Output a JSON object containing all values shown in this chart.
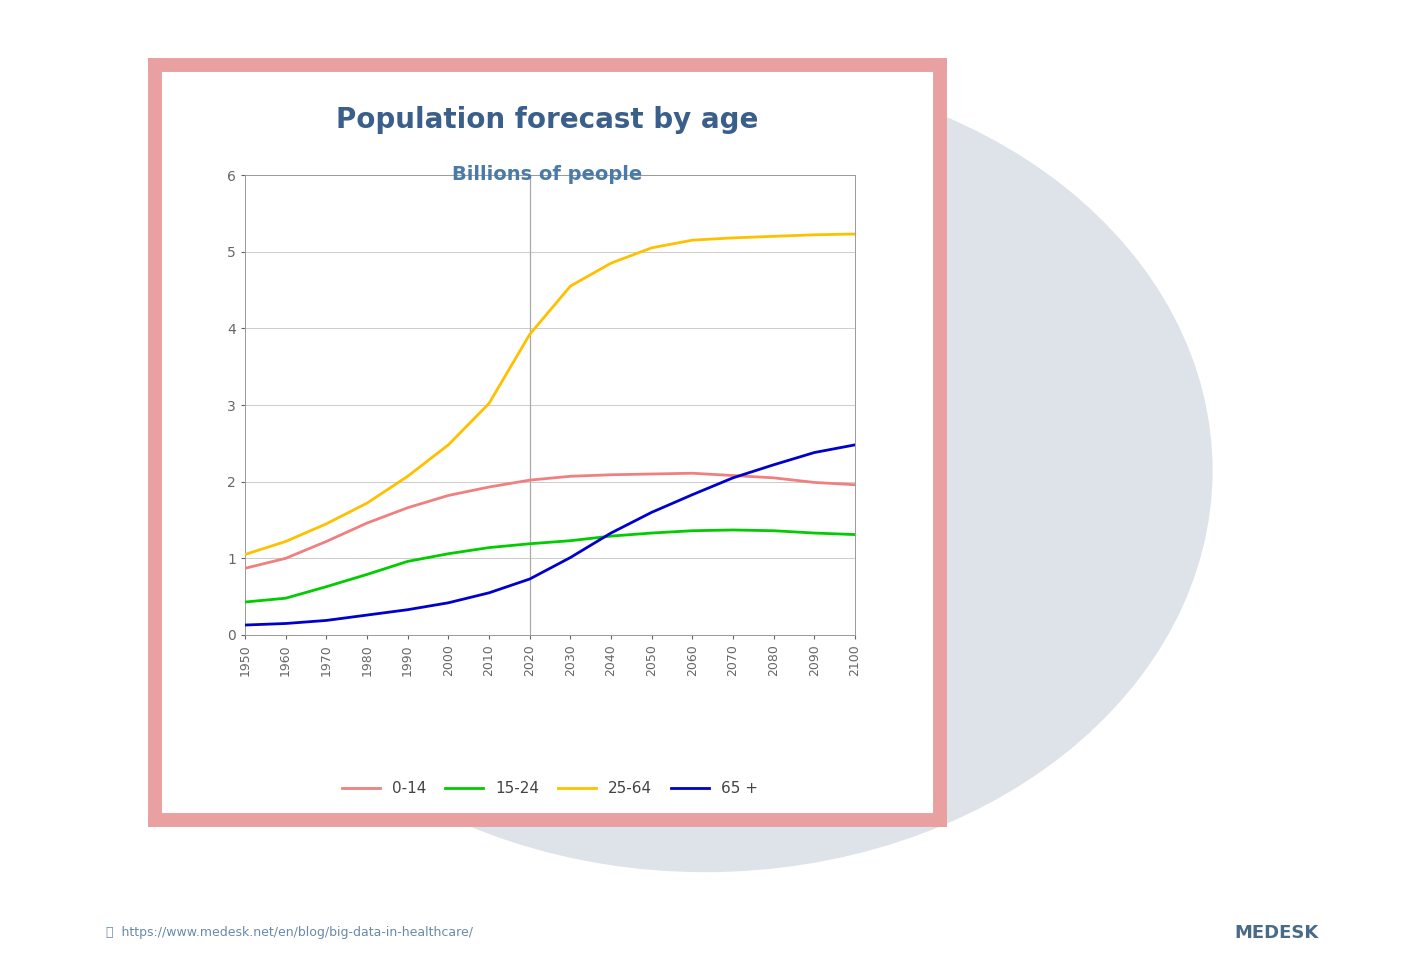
{
  "title": "Population forecast by age",
  "subtitle": "Billions of people",
  "title_color": "#3a5f8a",
  "subtitle_color": "#4a7aaa",
  "title_fontsize": 20,
  "subtitle_fontsize": 14,
  "years": [
    1950,
    1960,
    1970,
    1980,
    1990,
    2000,
    2010,
    2020,
    2030,
    2040,
    2050,
    2060,
    2070,
    2080,
    2090,
    2100
  ],
  "series": {
    "0-14": {
      "color": "#f08080",
      "values": [
        0.87,
        1.0,
        1.22,
        1.46,
        1.66,
        1.82,
        1.93,
        2.02,
        2.07,
        2.09,
        2.1,
        2.11,
        2.08,
        2.05,
        1.99,
        1.96
      ]
    },
    "15-24": {
      "color": "#00cc00",
      "values": [
        0.43,
        0.48,
        0.63,
        0.79,
        0.96,
        1.06,
        1.14,
        1.19,
        1.23,
        1.29,
        1.33,
        1.36,
        1.37,
        1.36,
        1.33,
        1.31
      ]
    },
    "25-64": {
      "color": "#ffc000",
      "values": [
        1.05,
        1.22,
        1.45,
        1.72,
        2.07,
        2.48,
        3.02,
        3.92,
        4.55,
        4.85,
        5.05,
        5.15,
        5.18,
        5.2,
        5.22,
        5.23
      ]
    },
    "65 +": {
      "color": "#0000cc",
      "values": [
        0.13,
        0.15,
        0.19,
        0.26,
        0.33,
        0.42,
        0.55,
        0.73,
        1.01,
        1.33,
        1.6,
        1.83,
        2.05,
        2.22,
        2.38,
        2.48
      ]
    }
  },
  "xlim": [
    1950,
    2100
  ],
  "ylim": [
    0,
    6
  ],
  "yticks": [
    0,
    1,
    2,
    3,
    4,
    5,
    6
  ],
  "xticks": [
    1950,
    1960,
    1970,
    1980,
    1990,
    2000,
    2010,
    2020,
    2030,
    2040,
    2050,
    2060,
    2070,
    2080,
    2090,
    2100
  ],
  "vline_x": 2020,
  "vline_color": "#aaaaaa",
  "grid_color": "#cccccc",
  "plot_bg": "#ffffff",
  "fig_bg": "#ffffff",
  "frame_color": "#e8a0a0",
  "frame_linewidth": 10,
  "legend_labels": [
    "0-14",
    "15-24",
    "25-64",
    "65 +"
  ],
  "line_width": 2.0,
  "url_text": "https://www.medesk.net/en/blog/big-data-in-healthcare/",
  "url_color": "#6a8aaa",
  "medesk_text": "MEDESK",
  "medesk_color": "#4a6a8a",
  "ellipse_color": "#d0d8e0",
  "ellipse_alpha": 0.7,
  "card_bg": "#ffffff"
}
